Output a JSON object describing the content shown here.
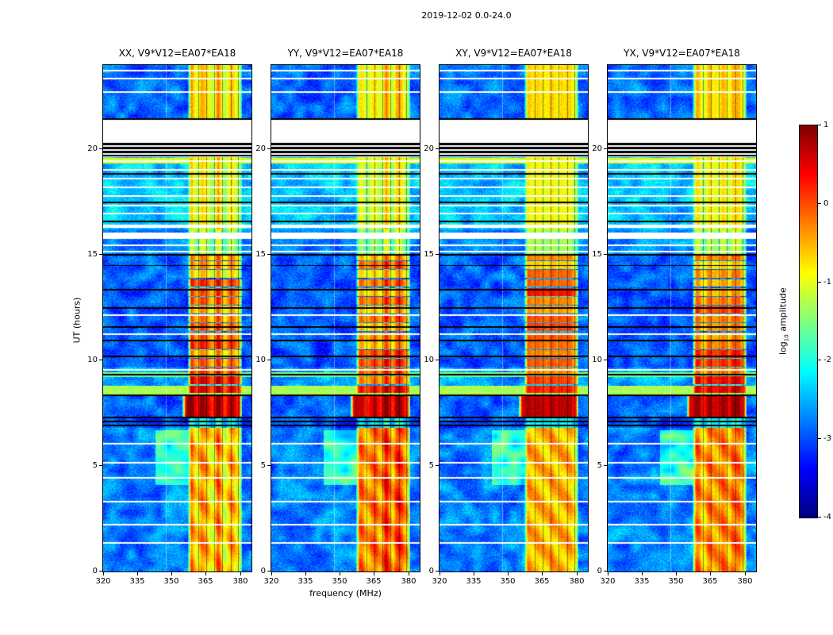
{
  "figure": {
    "title": "2019-12-02 0.0-24.0",
    "xlabel": "frequency (MHz)",
    "ylabel": "UT (hours)"
  },
  "panels": [
    {
      "title": "XX, V9*V12=EA07*EA18",
      "seed": 11
    },
    {
      "title": "YY, V9*V12=EA07*EA18",
      "seed": 22,
      "band_boost": {
        "t0": 0,
        "t1": 6.8,
        "amount": 0.45
      }
    },
    {
      "title": "XY, V9*V12=EA07*EA18",
      "seed": 33
    },
    {
      "title": "YX, V9*V12=EA07*EA18",
      "seed": 44,
      "band_boost": {
        "t0": 0,
        "t1": 6.8,
        "amount": 0.2
      }
    }
  ],
  "axis": {
    "xticks": [
      {
        "label": "320",
        "value": 320
      },
      {
        "label": "335",
        "value": 335
      },
      {
        "label": "350",
        "value": 350
      },
      {
        "label": "365",
        "value": 365
      },
      {
        "label": "380",
        "value": 380
      }
    ],
    "yticks": [
      {
        "label": "0",
        "value": 0
      },
      {
        "label": "5",
        "value": 5
      },
      {
        "label": "10",
        "value": 10
      },
      {
        "label": "15",
        "value": 15
      },
      {
        "label": "20",
        "value": 20
      }
    ]
  },
  "colorbar": {
    "label_pre": "log",
    "label_sub": "10",
    "label_post": " amplitude",
    "vmin": -4,
    "vmax": 1,
    "ticks": [
      {
        "label": "1",
        "value": 1
      },
      {
        "label": "0",
        "value": 0
      },
      {
        "label": "-1",
        "value": -1
      },
      {
        "label": "-2",
        "value": -2
      },
      {
        "label": "-3",
        "value": -3
      },
      {
        "label": "-4",
        "value": -4
      }
    ]
  },
  "chart_data": {
    "type": "heatmap",
    "title": "2019-12-02 0.0-24.0",
    "xlabel": "frequency (MHz)",
    "ylabel": "UT (hours)",
    "value_label": "log10 amplitude",
    "value_range": [
      -4,
      1
    ],
    "colormap": "jet",
    "xlim": [
      320,
      385
    ],
    "ylim": [
      0,
      24
    ],
    "xticks": [
      320,
      335,
      350,
      365,
      380
    ],
    "yticks": [
      0,
      5,
      10,
      15,
      20
    ],
    "panels": [
      "XX, V9*V12=EA07*EA18",
      "YY, V9*V12=EA07*EA18",
      "XY, V9*V12=EA07*EA18",
      "YX, V9*V12=EA07*EA18"
    ],
    "rfi_band_mhz": [
      357,
      381
    ],
    "segments": [
      {
        "t0": 21.4,
        "t1": 24.01,
        "bg": -2.85,
        "band": -0.7
      },
      {
        "t0": 20.35,
        "t1": 21.4,
        "gap": true
      },
      {
        "t0": 19.62,
        "t1": 20.35,
        "gap": true
      },
      {
        "t0": 16.2,
        "t1": 19.62,
        "bg": -2.4,
        "band": -0.9
      },
      {
        "t0": 15.05,
        "t1": 16.2,
        "bg": -2.75,
        "band": -1.3
      },
      {
        "t0": 13.85,
        "t1": 15.05,
        "bg": -2.9,
        "band": -0.4,
        "blocky": true
      },
      {
        "t0": 9.65,
        "t1": 13.85,
        "bg": -2.95,
        "band": -0.12,
        "blocky": true
      },
      {
        "t0": 8.3,
        "t1": 9.65,
        "bg": -2.6,
        "band": 0.1,
        "blocky": true
      },
      {
        "t0": 7.3,
        "t1": 8.3,
        "bg": -2.9,
        "band": 0.7,
        "f0": 354.5
      },
      {
        "t0": 6.8,
        "t1": 7.3,
        "bg": -3.0,
        "band": -2.1
      },
      {
        "t0": 0,
        "t1": 6.8,
        "bg": -2.75,
        "band": -0.5,
        "wavy": true
      }
    ],
    "glow_rows": [
      {
        "t0": 19.35,
        "t1": 19.6,
        "val": -1.05
      },
      {
        "t0": 8.38,
        "t1": 8.8,
        "val": -1.3
      },
      {
        "t0": 9.2,
        "t1": 9.45,
        "val": -1.55
      }
    ],
    "patches": [
      {
        "f0": 343,
        "f1": 357.5,
        "t0": 4.1,
        "t1": 6.7,
        "val": -1.95
      }
    ],
    "white_lines": [
      [
        23.75
      ],
      [
        23.35
      ],
      [
        22.7
      ],
      [
        19.45
      ],
      [
        19.05
      ],
      [
        18.6
      ],
      [
        18.2
      ],
      [
        17.8
      ],
      [
        17.35
      ],
      [
        16.95
      ],
      [
        16.35,
        0.15
      ],
      [
        15.9,
        0.3
      ],
      [
        15.45
      ],
      [
        15.15
      ],
      [
        12.15
      ],
      [
        11.25
      ],
      [
        9.55
      ],
      [
        6.05
      ],
      [
        5.15
      ],
      [
        4.45
      ],
      [
        3.3
      ],
      [
        2.2
      ],
      [
        1.35
      ]
    ],
    "black_lines": [
      [
        21.45,
        0.06
      ],
      [
        20.28,
        0.1
      ],
      [
        20.08,
        0.12
      ],
      [
        19.88,
        0.1
      ],
      [
        19.7,
        0.07
      ],
      [
        18.85,
        0.06
      ],
      [
        17.5,
        0.06
      ],
      [
        16.6,
        0.06
      ],
      [
        15.0,
        0.09
      ],
      [
        14.5,
        0.05
      ],
      [
        13.35,
        0.09
      ],
      [
        12.5,
        0.07
      ],
      [
        11.6,
        0.07
      ],
      [
        10.95,
        0.06
      ],
      [
        10.2,
        0.07
      ],
      [
        9.35,
        0.06
      ],
      [
        8.35,
        0.08
      ],
      [
        7.28,
        0.09
      ],
      [
        7.1,
        0.09
      ],
      [
        6.92,
        0.09
      ]
    ],
    "dark_channels_mhz": [
      361.8,
      365.3,
      368.8,
      372.3,
      375.8,
      379.0
    ],
    "white_channel_mhz": 347.5
  }
}
